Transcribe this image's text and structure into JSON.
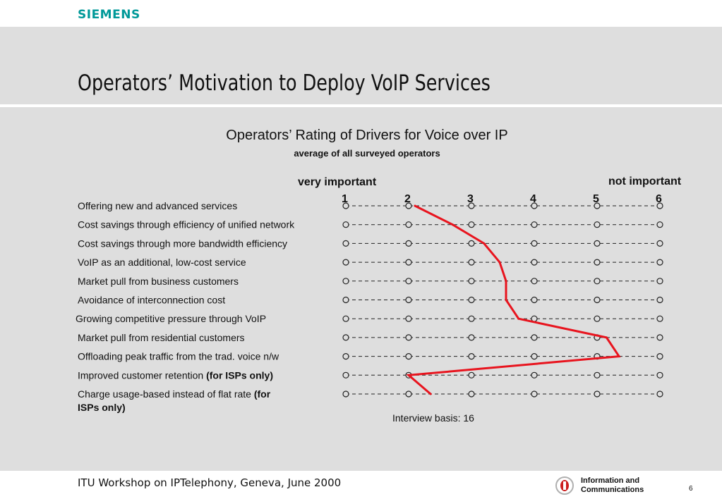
{
  "header": {
    "logo": "SIEMENS"
  },
  "slide": {
    "title": "Operators’ Motivation to Deploy VoIP Services"
  },
  "chart_data": {
    "type": "line",
    "title": "Operators’ Rating of Drivers for Voice over IP",
    "subtitle": "average of all surveyed operators",
    "scale_left_label": "very important",
    "scale_right_label": "not important",
    "x_ticks": [
      1,
      2,
      3,
      4,
      5,
      6
    ],
    "xlim": [
      1,
      6
    ],
    "categories": [
      "Offering new and advanced services",
      "Cost savings through efficiency of unified network",
      "Cost savings through more bandwidth efficiency",
      "VoIP as an additional, low-cost service",
      "Market pull from business customers",
      "Avoidance of interconnection cost",
      "Growing competitive pressure through VoIP",
      "Market pull from residential customers",
      "Offloading peak traffic from the trad. voice n/w",
      "Improved customer retention",
      "Charge usage-based instead of flat rate"
    ],
    "category_suffixes": [
      "",
      "",
      "",
      "",
      "",
      "",
      "",
      "",
      "",
      "(for ISPs only)",
      "(for"
    ],
    "category_line2": [
      "",
      "",
      "",
      "",
      "",
      "",
      "",
      "",
      "",
      "",
      "ISPs only)"
    ],
    "values": [
      2.1,
      2.7,
      3.2,
      3.45,
      3.55,
      3.55,
      3.75,
      5.15,
      5.35,
      2.0,
      2.35
    ],
    "line_color": "#e8141e",
    "annotation": "Interview basis: 16"
  },
  "footer": {
    "text": "ITU Workshop on IPTelephony, Geneva, June 2000",
    "brand_line1": "Information and",
    "brand_line2": "Communications",
    "page_number": "6"
  }
}
